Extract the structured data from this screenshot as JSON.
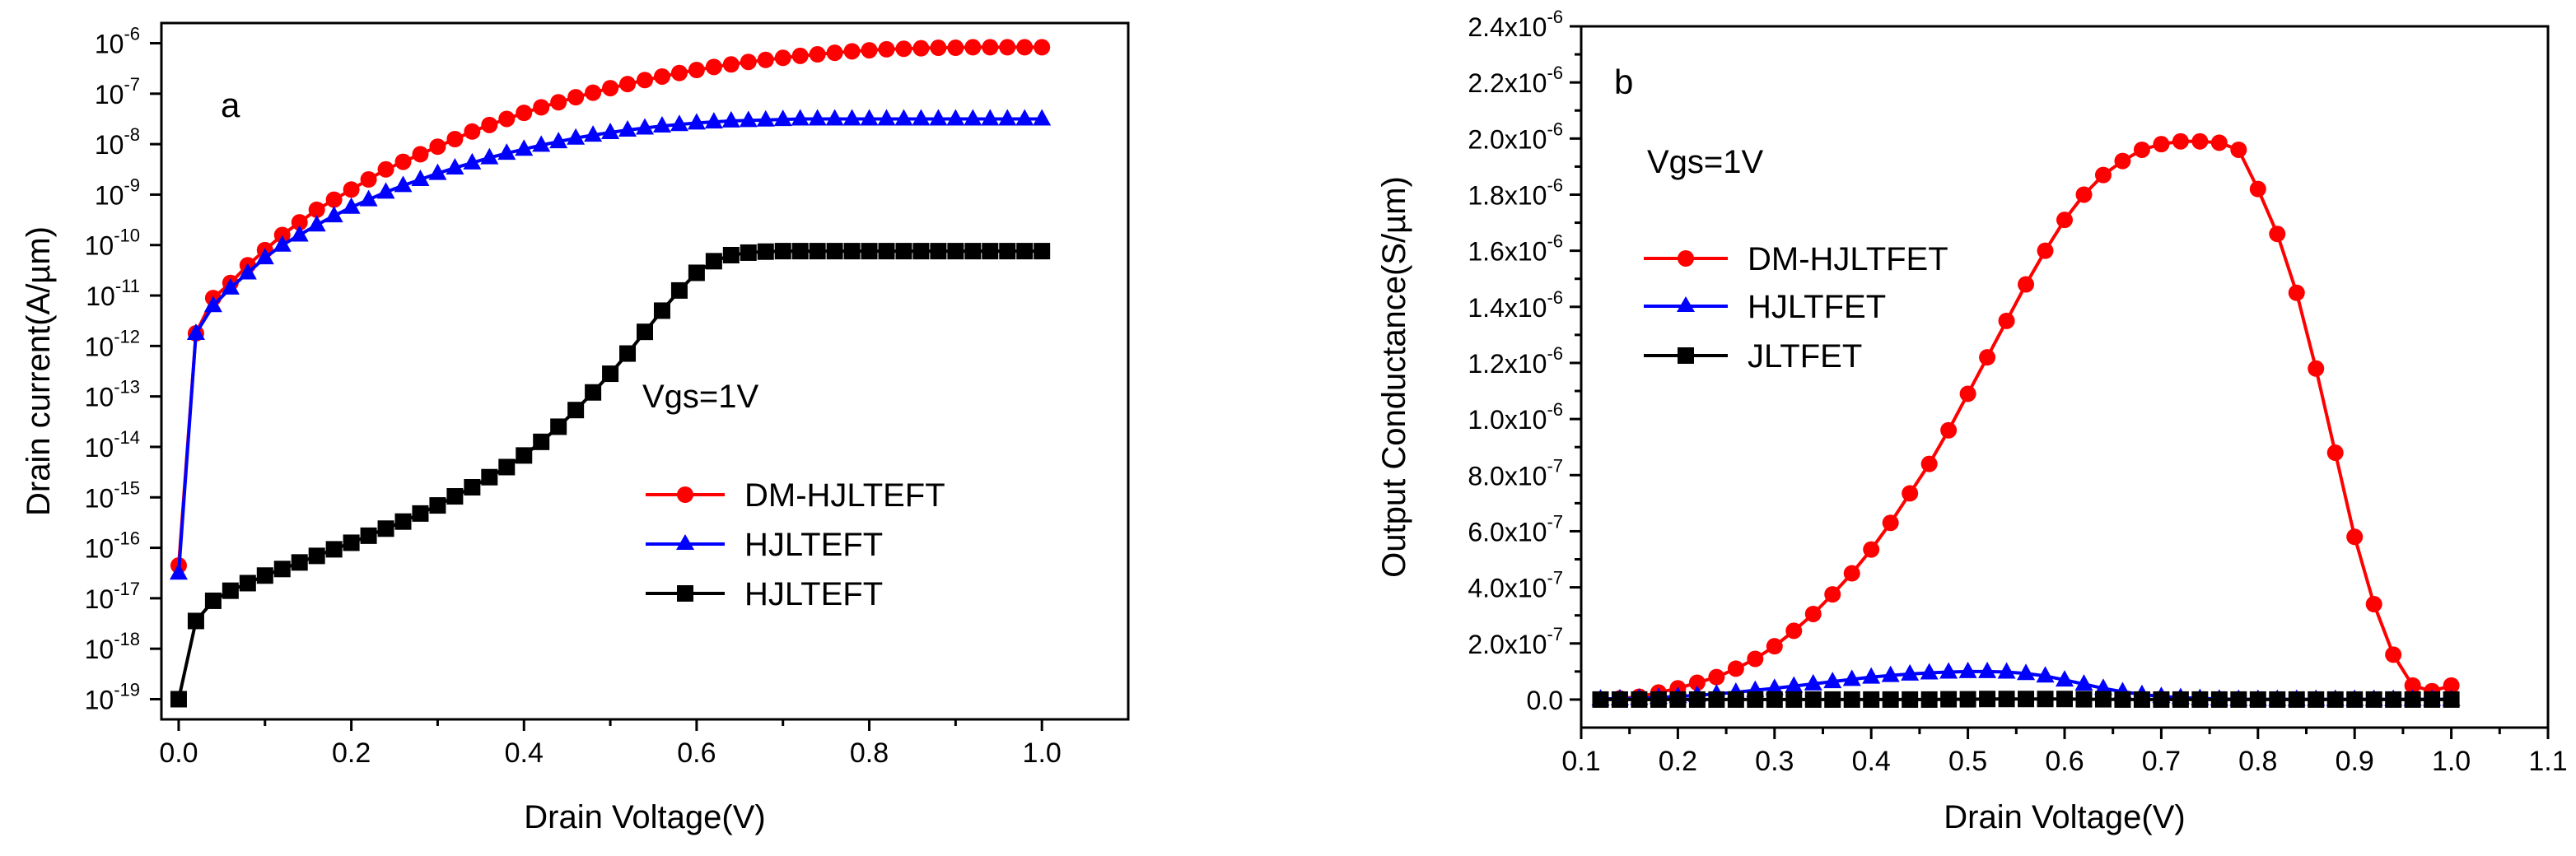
{
  "chart_data": [
    {
      "id": "a",
      "type": "line",
      "panel_label": "a",
      "annotation": "Vgs=1V",
      "xlabel": "Drain Voltage(V)",
      "ylabel": "Drain current(A/µm)",
      "yscale": "log",
      "xlim": [
        -0.02,
        1.1
      ],
      "ylim_exp": [
        -19.4,
        -5.6
      ],
      "x_ticks": [
        0.0,
        0.2,
        0.4,
        0.6,
        0.8,
        1.0
      ],
      "x_tick_labels": [
        "0.0",
        "0.2",
        "0.4",
        "0.6",
        "0.8",
        "1.0"
      ],
      "y_tick_exponents": [
        -19,
        -18,
        -17,
        -16,
        -15,
        -14,
        -13,
        -12,
        -11,
        -10,
        -9,
        -8,
        -7,
        -6
      ],
      "y_tick_labels": [
        "-19",
        "-18",
        "-17",
        "-16",
        "-15",
        "-14",
        "-13",
        "-12",
        "-11",
        "-10",
        "-9",
        "-8",
        "-7",
        "-6"
      ],
      "y_tick_base": "10",
      "legend": [
        "DM-HJLTEFT",
        "HJLTEFT",
        "HJLTEFT"
      ],
      "series": [
        {
          "name": "DM-HJLTEFT",
          "color": "#ff0000",
          "marker": "circle",
          "x": [
            0,
            0.02,
            0.04,
            0.06,
            0.08,
            0.1,
            0.12,
            0.14,
            0.16,
            0.18,
            0.2,
            0.22,
            0.24,
            0.26,
            0.28,
            0.3,
            0.32,
            0.34,
            0.36,
            0.38,
            0.4,
            0.42,
            0.44,
            0.46,
            0.48,
            0.5,
            0.52,
            0.54,
            0.56,
            0.58,
            0.6,
            0.62,
            0.64,
            0.66,
            0.68,
            0.7,
            0.72,
            0.74,
            0.76,
            0.78,
            0.8,
            0.82,
            0.84,
            0.86,
            0.88,
            0.9,
            0.92,
            0.94,
            0.96,
            0.98,
            1.0
          ],
          "log10_y": [
            -16.35,
            -11.75,
            -11.05,
            -10.75,
            -10.4,
            -10.1,
            -9.8,
            -9.55,
            -9.3,
            -9.1,
            -8.9,
            -8.7,
            -8.5,
            -8.35,
            -8.2,
            -8.05,
            -7.9,
            -7.75,
            -7.62,
            -7.5,
            -7.38,
            -7.27,
            -7.17,
            -7.07,
            -6.98,
            -6.89,
            -6.81,
            -6.73,
            -6.66,
            -6.59,
            -6.53,
            -6.47,
            -6.42,
            -6.37,
            -6.33,
            -6.29,
            -6.25,
            -6.22,
            -6.19,
            -6.16,
            -6.14,
            -6.12,
            -6.11,
            -6.1,
            -6.09,
            -6.09,
            -6.08,
            -6.08,
            -6.08,
            -6.08,
            -6.08
          ]
        },
        {
          "name": "HJLTEFT",
          "color": "#0000ff",
          "marker": "triangle",
          "x": [
            0,
            0.02,
            0.04,
            0.06,
            0.08,
            0.1,
            0.12,
            0.14,
            0.16,
            0.18,
            0.2,
            0.22,
            0.24,
            0.26,
            0.28,
            0.3,
            0.32,
            0.34,
            0.36,
            0.38,
            0.4,
            0.42,
            0.44,
            0.46,
            0.48,
            0.5,
            0.52,
            0.54,
            0.56,
            0.58,
            0.6,
            0.62,
            0.64,
            0.66,
            0.68,
            0.7,
            0.72,
            0.74,
            0.76,
            0.78,
            0.8,
            0.82,
            0.84,
            0.86,
            0.88,
            0.9,
            0.92,
            0.94,
            0.96,
            0.98,
            1.0
          ],
          "log10_y": [
            -16.5,
            -11.75,
            -11.2,
            -10.85,
            -10.55,
            -10.25,
            -10.0,
            -9.8,
            -9.6,
            -9.42,
            -9.25,
            -9.1,
            -8.95,
            -8.82,
            -8.7,
            -8.58,
            -8.47,
            -8.37,
            -8.27,
            -8.18,
            -8.1,
            -8.02,
            -7.95,
            -7.88,
            -7.82,
            -7.77,
            -7.72,
            -7.68,
            -7.64,
            -7.61,
            -7.58,
            -7.56,
            -7.54,
            -7.53,
            -7.52,
            -7.51,
            -7.5,
            -7.5,
            -7.5,
            -7.5,
            -7.5,
            -7.5,
            -7.5,
            -7.5,
            -7.5,
            -7.5,
            -7.5,
            -7.5,
            -7.5,
            -7.5,
            -7.5
          ]
        },
        {
          "name": "HJLTEFT",
          "color": "#000000",
          "marker": "square",
          "x": [
            0,
            0.02,
            0.04,
            0.06,
            0.08,
            0.1,
            0.12,
            0.14,
            0.16,
            0.18,
            0.2,
            0.22,
            0.24,
            0.26,
            0.28,
            0.3,
            0.32,
            0.34,
            0.36,
            0.38,
            0.4,
            0.42,
            0.44,
            0.46,
            0.48,
            0.5,
            0.52,
            0.54,
            0.56,
            0.58,
            0.6,
            0.62,
            0.64,
            0.66,
            0.68,
            0.7,
            0.72,
            0.74,
            0.76,
            0.78,
            0.8,
            0.82,
            0.84,
            0.86,
            0.88,
            0.9,
            0.92,
            0.94,
            0.96,
            0.98,
            1.0
          ],
          "log10_y": [
            -19,
            -17.45,
            -17.05,
            -16.85,
            -16.7,
            -16.55,
            -16.42,
            -16.29,
            -16.16,
            -16.03,
            -15.9,
            -15.76,
            -15.62,
            -15.48,
            -15.32,
            -15.16,
            -14.98,
            -14.8,
            -14.6,
            -14.4,
            -14.17,
            -13.9,
            -13.6,
            -13.27,
            -12.92,
            -12.55,
            -12.15,
            -11.72,
            -11.3,
            -10.9,
            -10.55,
            -10.32,
            -10.2,
            -10.15,
            -10.13,
            -10.12,
            -10.12,
            -10.12,
            -10.12,
            -10.12,
            -10.12,
            -10.12,
            -10.12,
            -10.12,
            -10.12,
            -10.12,
            -10.12,
            -10.12,
            -10.12,
            -10.12,
            -10.12
          ]
        }
      ]
    },
    {
      "id": "b",
      "type": "line",
      "panel_label": "b",
      "annotation": "Vgs=1V",
      "xlabel": "Drain Voltage(V)",
      "ylabel": "Output Conductance(S/µm)",
      "yscale": "linear",
      "xlim": [
        0.1,
        1.1
      ],
      "ylim": [
        -1e-07,
        2.4e-06
      ],
      "x_ticks": [
        0.1,
        0.2,
        0.3,
        0.4,
        0.5,
        0.6,
        0.7,
        0.8,
        0.9,
        1.0,
        1.1
      ],
      "x_tick_labels": [
        "0.1",
        "0.2",
        "0.3",
        "0.4",
        "0.5",
        "0.6",
        "0.7",
        "0.8",
        "0.9",
        "1.0",
        "1.1"
      ],
      "y_ticks": [
        0,
        2e-07,
        4e-07,
        6e-07,
        8e-07,
        1e-06,
        1.2e-06,
        1.4e-06,
        1.6e-06,
        1.8e-06,
        2e-06,
        2.2e-06,
        2.4e-06
      ],
      "y_tick_mantissas": [
        "0.0",
        "2.0x10",
        "4.0x10",
        "6.0x10",
        "8.0x10",
        "1.0x10",
        "1.2x10",
        "1.4x10",
        "1.6x10",
        "1.8x10",
        "2.0x10",
        "2.2x10",
        "2.4x10"
      ],
      "y_tick_exponents": [
        "",
        "-7",
        "-7",
        "-7",
        "-7",
        "-6",
        "-6",
        "-6",
        "-6",
        "-6",
        "-6",
        "-6",
        "-6"
      ],
      "legend": [
        "DM-HJLTFET",
        "HJLTFET",
        "JLTFET"
      ],
      "series": [
        {
          "name": "DM-HJLTFET",
          "color": "#ff0000",
          "marker": "circle",
          "x": [
            0.12,
            0.14,
            0.16,
            0.18,
            0.2,
            0.22,
            0.24,
            0.26,
            0.28,
            0.3,
            0.32,
            0.34,
            0.36,
            0.38,
            0.4,
            0.42,
            0.44,
            0.46,
            0.48,
            0.5,
            0.52,
            0.54,
            0.56,
            0.58,
            0.6,
            0.62,
            0.64,
            0.66,
            0.68,
            0.7,
            0.72,
            0.74,
            0.76,
            0.78,
            0.8,
            0.82,
            0.84,
            0.86,
            0.88,
            0.9,
            0.92,
            0.94,
            0.96,
            0.98,
            1.0
          ],
          "y": [
            1e-09,
            4e-09,
            1e-08,
            2.5e-08,
            4e-08,
            6e-08,
            8e-08,
            1.1e-07,
            1.45e-07,
            1.9e-07,
            2.45e-07,
            3.05e-07,
            3.75e-07,
            4.5e-07,
            5.35e-07,
            6.3e-07,
            7.35e-07,
            8.4e-07,
            9.6e-07,
            1.09e-06,
            1.22e-06,
            1.35e-06,
            1.48e-06,
            1.6e-06,
            1.71e-06,
            1.8e-06,
            1.87e-06,
            1.92e-06,
            1.96e-06,
            1.98e-06,
            1.99e-06,
            1.99e-06,
            1.985e-06,
            1.96e-06,
            1.82e-06,
            1.66e-06,
            1.45e-06,
            1.18e-06,
            8.8e-07,
            5.8e-07,
            3.4e-07,
            1.6e-07,
            5e-08,
            3e-08,
            5e-08
          ]
        },
        {
          "name": "HJLTFET",
          "color": "#0000ff",
          "marker": "triangle",
          "x": [
            0.12,
            0.14,
            0.16,
            0.18,
            0.2,
            0.22,
            0.24,
            0.26,
            0.28,
            0.3,
            0.32,
            0.34,
            0.36,
            0.38,
            0.4,
            0.42,
            0.44,
            0.46,
            0.48,
            0.5,
            0.52,
            0.54,
            0.56,
            0.58,
            0.6,
            0.62,
            0.64,
            0.66,
            0.68,
            0.7,
            0.72,
            0.74,
            0.76,
            0.78,
            0.8,
            0.82,
            0.84,
            0.86,
            0.88,
            0.9,
            0.92,
            0.94,
            0.96,
            0.98,
            1.0
          ],
          "y": [
            2e-09,
            3e-09,
            5e-09,
            8e-09,
            1.1e-08,
            1.5e-08,
            2e-08,
            2.6e-08,
            3.3e-08,
            4e-08,
            4.8e-08,
            5.6e-08,
            6.4e-08,
            7.2e-08,
            8e-08,
            8.6e-08,
            9.1e-08,
            9.5e-08,
            9.8e-08,
            1e-07,
            1e-07,
            9.8e-08,
            9.3e-08,
            8.4e-08,
            7e-08,
            5.5e-08,
            4e-08,
            2.8e-08,
            1.8e-08,
            1.1e-08,
            7e-09,
            4e-09,
            2e-09,
            1e-09,
            1e-09,
            1e-09,
            1e-09,
            1e-09,
            1e-09,
            1e-09,
            1e-09,
            1e-09,
            1e-09,
            1e-09,
            1e-09
          ]
        },
        {
          "name": "JLTFET",
          "color": "#000000",
          "marker": "square",
          "x": [
            0.12,
            0.14,
            0.16,
            0.18,
            0.2,
            0.22,
            0.24,
            0.26,
            0.28,
            0.3,
            0.32,
            0.34,
            0.36,
            0.38,
            0.4,
            0.42,
            0.44,
            0.46,
            0.48,
            0.5,
            0.52,
            0.54,
            0.56,
            0.58,
            0.6,
            0.62,
            0.64,
            0.66,
            0.68,
            0.7,
            0.72,
            0.74,
            0.76,
            0.78,
            0.8,
            0.82,
            0.84,
            0.86,
            0.88,
            0.9,
            0.92,
            0.94,
            0.96,
            0.98,
            1.0
          ],
          "y": [
            0,
            0,
            0,
            0,
            0,
            0,
            0,
            0,
            0,
            0,
            0,
            0,
            0,
            0,
            0,
            0,
            0,
            0,
            1e-09,
            1e-09,
            2e-09,
            2e-09,
            2e-09,
            2e-09,
            2e-09,
            1e-09,
            1e-09,
            0,
            0,
            0,
            0,
            0,
            0,
            0,
            0,
            0,
            0,
            0,
            0,
            0,
            0,
            0,
            0,
            0,
            0
          ]
        }
      ]
    }
  ]
}
